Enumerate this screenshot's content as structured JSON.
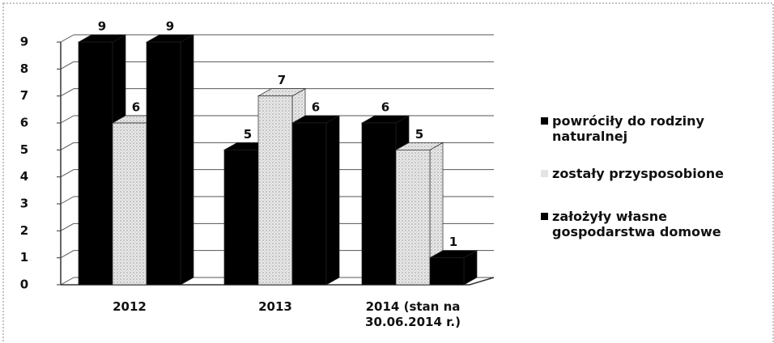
{
  "chart_data": {
    "type": "bar3d",
    "categories": [
      "2012",
      "2013",
      "2014 (stan na 30.06.2014 r.)"
    ],
    "series": [
      {
        "name": "powróciły do rodziny naturalnej",
        "color": "#000000",
        "values": [
          9,
          5,
          6
        ]
      },
      {
        "name": "zostały przysposobione",
        "color": "#e4e4e4",
        "values": [
          6,
          7,
          5
        ]
      },
      {
        "name": "założyły własne gospodarstwa domowe",
        "color": "#000000",
        "values": [
          9,
          6,
          1
        ]
      }
    ],
    "ylim": [
      0,
      9
    ],
    "yticks": [
      0,
      1,
      2,
      3,
      4,
      5,
      6,
      7,
      8,
      9
    ],
    "grid": true,
    "legend": "right"
  }
}
